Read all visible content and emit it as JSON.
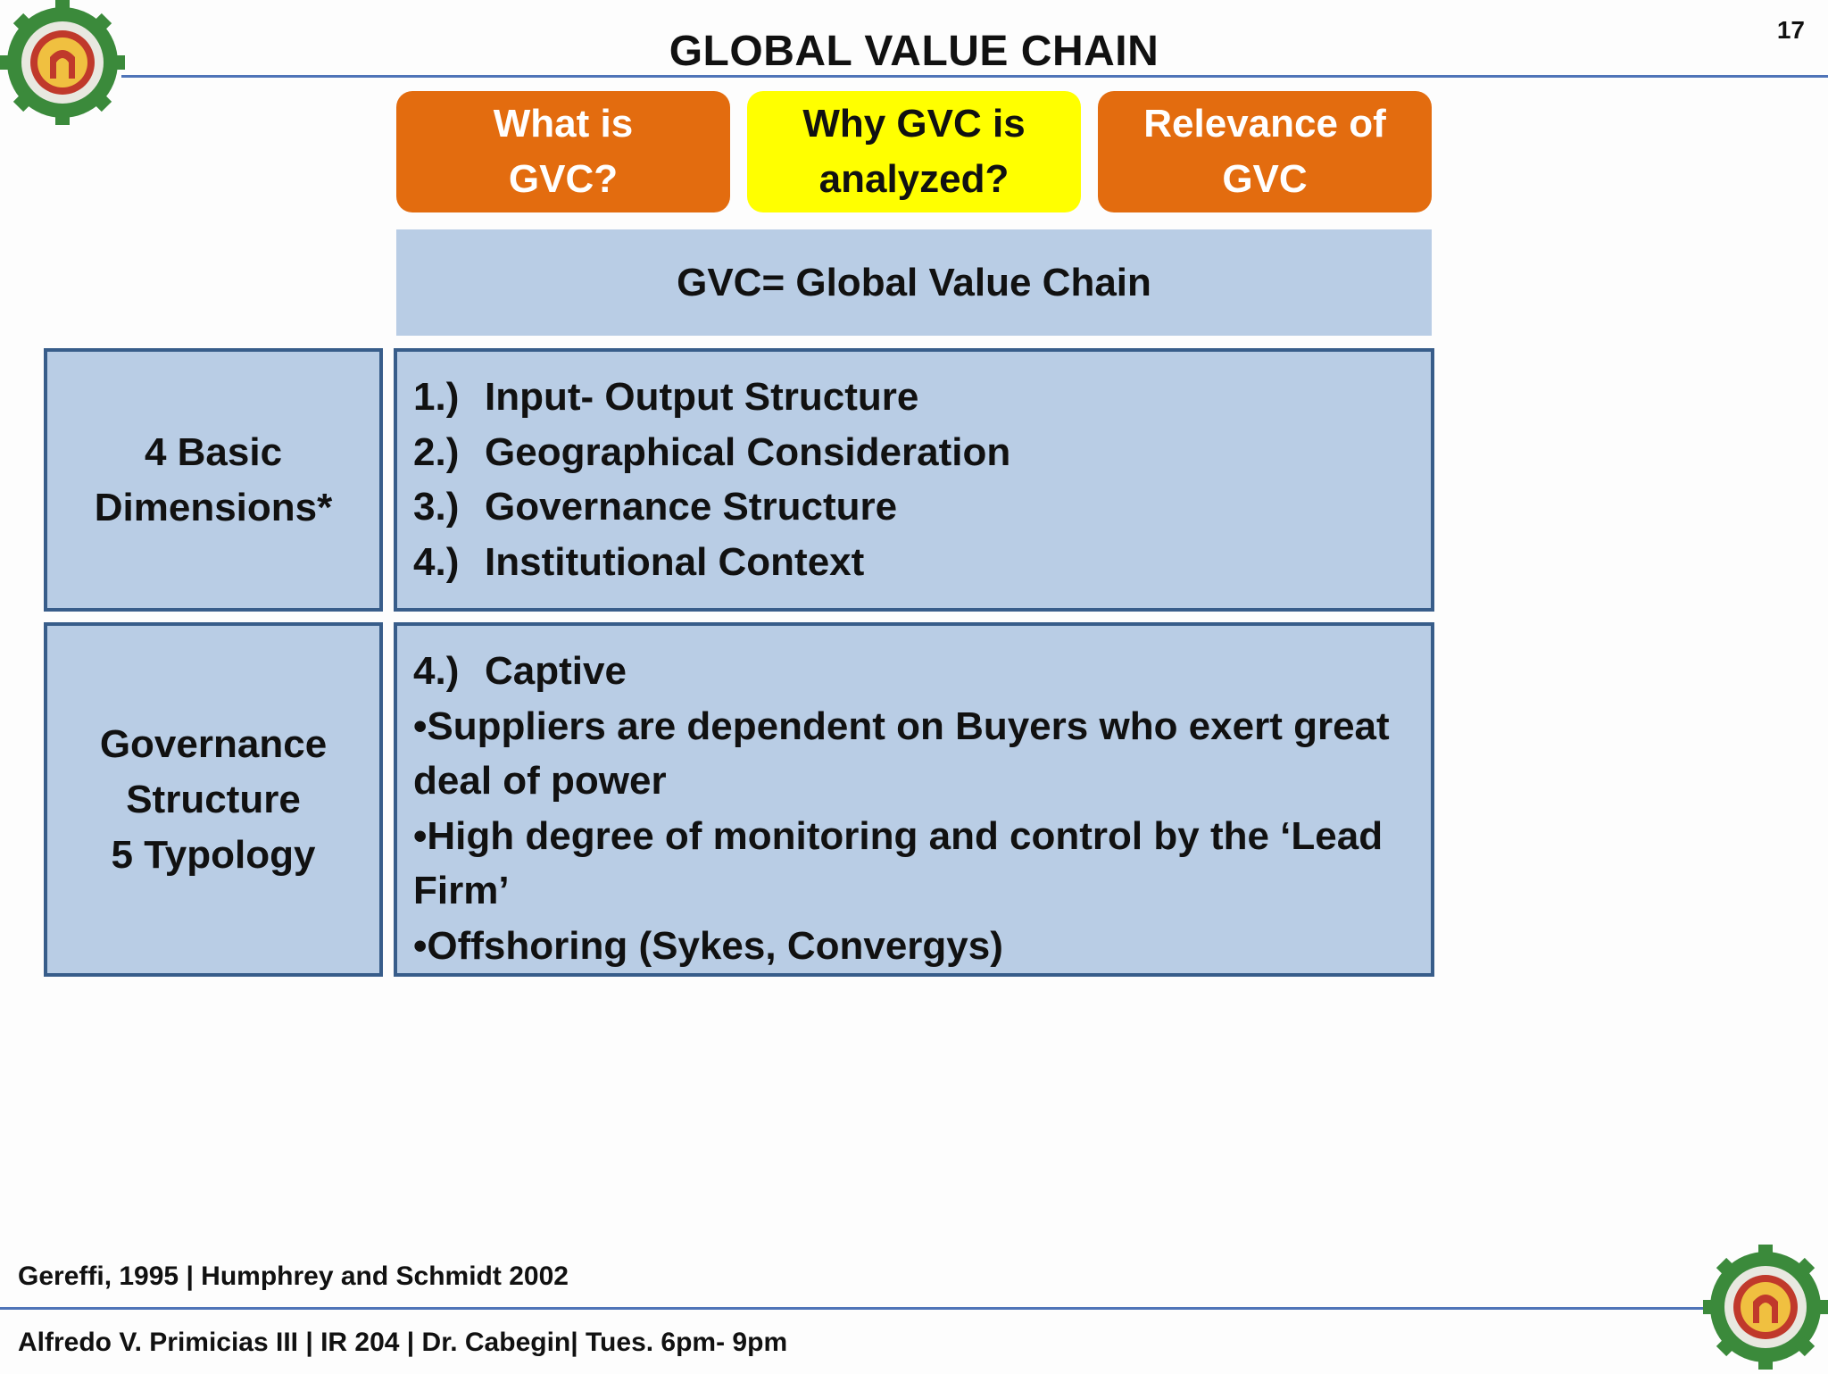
{
  "slide_number": "17",
  "title": "GLOBAL VALUE CHAIN",
  "tabs": [
    {
      "line1": "What is",
      "line2": "GVC?",
      "color": "#e36c0f"
    },
    {
      "line1": "Why GVC is",
      "line2": "analyzed?",
      "color": "#ffff00"
    },
    {
      "line1": "Relevance of",
      "line2": "GVC",
      "color": "#e36c0f"
    }
  ],
  "banner": "GVC= Global Value Chain",
  "dimensions": {
    "label_line1": "4 Basic",
    "label_line2": "Dimensions*",
    "items": [
      {
        "num": "1.)",
        "text": "Input- Output Structure"
      },
      {
        "num": "2.)",
        "text": "Geographical Consideration"
      },
      {
        "num": "3.)",
        "text": "Governance Structure"
      },
      {
        "num": "4.)",
        "text": "Institutional Context"
      }
    ]
  },
  "governance": {
    "label_line1": "Governance",
    "label_line2": "Structure",
    "label_line3": "5 Typology",
    "heading_num": "4.)",
    "heading_text": "Captive",
    "bullets": [
      "•Suppliers are dependent on Buyers who exert great deal of power",
      "•High degree of monitoring and control by the ‘Lead Firm’",
      "•Offshoring (Sykes, Convergys)"
    ]
  },
  "footer": {
    "reference": "Gereffi, 1995 | Humphrey and Schmidt 2002",
    "author": "Alfredo V. Primicias III | IR 204 | Dr. Cabegin| Tues. 6pm- 9pm"
  },
  "colors": {
    "accent_orange": "#e36c0f",
    "accent_yellow": "#ffff00",
    "box_fill": "#b9cde5",
    "box_border": "#385d8a",
    "rule": "#4f74b8"
  },
  "icons": {
    "top_left": "gear-seal-logo-icon",
    "bottom_right": "gear-seal-logo-icon"
  }
}
